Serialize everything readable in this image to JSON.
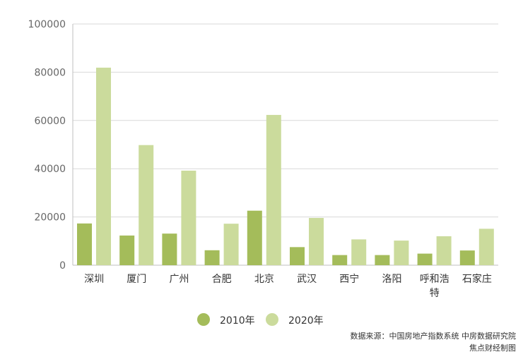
{
  "chart_data": {
    "type": "bar",
    "categories": [
      "深圳",
      "厦门",
      "广州",
      "合肥",
      "北京",
      "武汉",
      "西宁",
      "洛阳",
      "呼和浩特",
      "石家庄"
    ],
    "category_lines": [
      [
        "深圳"
      ],
      [
        "厦门"
      ],
      [
        "广州"
      ],
      [
        "合肥"
      ],
      [
        "北京"
      ],
      [
        "武汉"
      ],
      [
        "西宁"
      ],
      [
        "洛阳"
      ],
      [
        "呼和浩",
        "特"
      ],
      [
        "石家庄"
      ]
    ],
    "series": [
      {
        "name": "2010年",
        "color": "#a4bc5a",
        "values": [
          17300,
          12300,
          13100,
          6200,
          22600,
          7500,
          4200,
          4200,
          4800,
          6100
        ]
      },
      {
        "name": "2020年",
        "color": "#cbdb9c",
        "values": [
          81900,
          49800,
          39200,
          17200,
          62300,
          19600,
          10700,
          10200,
          12000,
          15100
        ]
      }
    ],
    "ylim": [
      0,
      100000
    ],
    "yticks": [
      "0",
      "20000",
      "40000",
      "60000",
      "80000",
      "100000"
    ],
    "grid": true,
    "legend_position": "bottom-center"
  },
  "source": {
    "line1": "数据来源：中国房地产指数系统 中房数据研究院",
    "line2": "焦点财经制图"
  }
}
